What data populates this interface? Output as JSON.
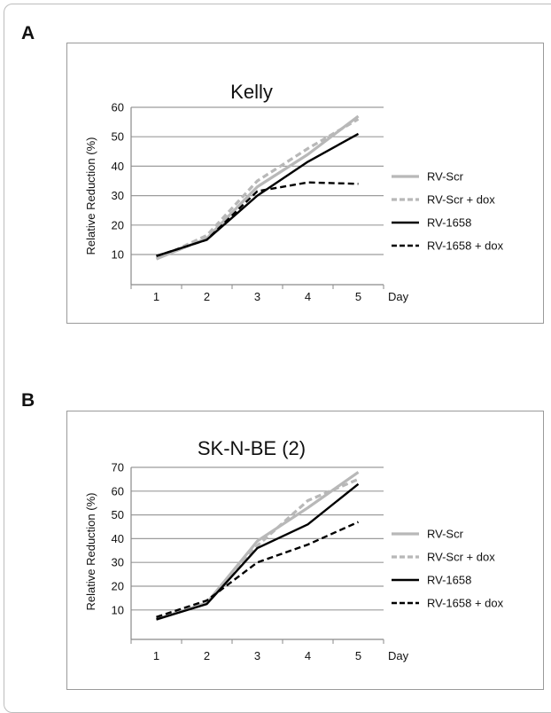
{
  "chart_data": [
    {
      "panel": "A",
      "type": "line",
      "title": "Kelly",
      "xlabel": "Day",
      "ylabel": "Relative Reduction (%)",
      "categories": [
        "1",
        "2",
        "3",
        "4",
        "5"
      ],
      "ylim": [
        0,
        60
      ],
      "yticks": [
        10,
        20,
        30,
        40,
        50,
        60
      ],
      "grid": true,
      "legend": "right",
      "series": [
        {
          "name": "RV-Scr",
          "values": [
            8.5,
            15.5,
            33,
            44,
            57
          ],
          "color": "#b8b8b8",
          "dash": "solid"
        },
        {
          "name": "RV-Scr + dox",
          "values": [
            8.5,
            16.5,
            35,
            46,
            56
          ],
          "color": "#b8b8b8",
          "dash": "dashed"
        },
        {
          "name": "RV-1658",
          "values": [
            9.5,
            15,
            30,
            41.5,
            51
          ],
          "color": "#000000",
          "dash": "solid"
        },
        {
          "name": "RV-1658 + dox",
          "values": [
            9.5,
            15,
            31.5,
            34.5,
            34
          ],
          "color": "#000000",
          "dash": "dashed"
        }
      ]
    },
    {
      "panel": "B",
      "type": "line",
      "title": "SK-N-BE (2)",
      "xlabel": "Day",
      "ylabel": "Relative Reduction (%)",
      "categories": [
        "1",
        "2",
        "3",
        "4",
        "5"
      ],
      "ylim": [
        0,
        70
      ],
      "yticks": [
        10,
        20,
        30,
        40,
        50,
        60,
        70
      ],
      "grid": true,
      "legend": "right",
      "series": [
        {
          "name": "RV-Scr",
          "values": [
            6,
            13,
            39,
            53,
            68
          ],
          "color": "#b8b8b8",
          "dash": "solid"
        },
        {
          "name": "RV-Scr + dox",
          "values": [
            6.5,
            13,
            37,
            56,
            65
          ],
          "color": "#b8b8b8",
          "dash": "dashed"
        },
        {
          "name": "RV-1658",
          "values": [
            6,
            12.5,
            36,
            46,
            63
          ],
          "color": "#000000",
          "dash": "solid"
        },
        {
          "name": "RV-1658 + dox",
          "values": [
            7,
            14,
            30,
            37.5,
            47
          ],
          "color": "#000000",
          "dash": "dashed"
        }
      ]
    }
  ]
}
